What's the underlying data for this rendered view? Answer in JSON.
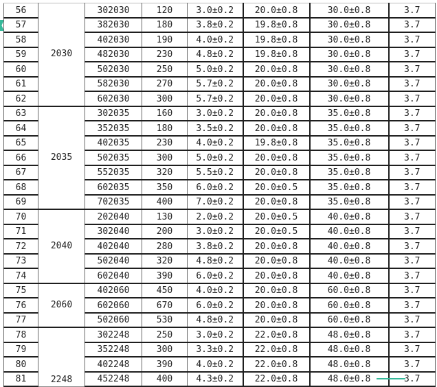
{
  "accent_color": "#36b99a",
  "groups": [
    {
      "label": "2030",
      "rows": [
        {
          "no": "56",
          "model": "302030",
          "capacity": "120",
          "thickness": "3.0±0.2",
          "width": "20.0±0.8",
          "length": "30.0±0.8",
          "voltage": "3.7"
        },
        {
          "no": "57",
          "model": "382030",
          "capacity": "180",
          "thickness": "3.8±0.2",
          "width": "19.8±0.8",
          "length": "30.0±0.8",
          "voltage": "3.7"
        },
        {
          "no": "58",
          "model": "402030",
          "capacity": "190",
          "thickness": "4.0±0.2",
          "width": "19.8±0.8",
          "length": "30.0±0.8",
          "voltage": "3.7"
        },
        {
          "no": "59",
          "model": "482030",
          "capacity": "230",
          "thickness": "4.8±0.2",
          "width": "19.8±0.8",
          "length": "30.0±0.8",
          "voltage": "3.7"
        },
        {
          "no": "60",
          "model": "502030",
          "capacity": "250",
          "thickness": "5.0±0.2",
          "width": "20.0±0.8",
          "length": "30.0±0.8",
          "voltage": "3.7"
        },
        {
          "no": "61",
          "model": "582030",
          "capacity": "270",
          "thickness": "5.7±0.2",
          "width": "20.0±0.8",
          "length": "30.0±0.8",
          "voltage": "3.7"
        },
        {
          "no": "62",
          "model": "602030",
          "capacity": "300",
          "thickness": "5.7±0.2",
          "width": "20.0±0.8",
          "length": "30.0±0.8",
          "voltage": "3.7"
        }
      ]
    },
    {
      "label": "2035",
      "rows": [
        {
          "no": "63",
          "model": "302035",
          "capacity": "160",
          "thickness": "3.0±0.2",
          "width": "20.0±0.8",
          "length": "35.0±0.8",
          "voltage": "3.7"
        },
        {
          "no": "64",
          "model": "352035",
          "capacity": "180",
          "thickness": "3.5±0.2",
          "width": "20.0±0.8",
          "length": "35.0±0.8",
          "voltage": "3.7"
        },
        {
          "no": "65",
          "model": "402035",
          "capacity": "230",
          "thickness": "4.0±0.2",
          "width": "19.8±0.8",
          "length": "35.0±0.8",
          "voltage": "3.7"
        },
        {
          "no": "66",
          "model": "502035",
          "capacity": "300",
          "thickness": "5.0±0.2",
          "width": "20.0±0.8",
          "length": "35.0±0.8",
          "voltage": "3.7"
        },
        {
          "no": "67",
          "model": "552035",
          "capacity": "320",
          "thickness": "5.5±0.2",
          "width": "20.0±0.8",
          "length": "35.0±0.8",
          "voltage": "3.7"
        },
        {
          "no": "68",
          "model": "602035",
          "capacity": "350",
          "thickness": "6.0±0.2",
          "width": "20.0±0.5",
          "length": "35.0±0.8",
          "voltage": "3.7"
        },
        {
          "no": "69",
          "model": "702035",
          "capacity": "400",
          "thickness": "7.0±0.2",
          "width": "20.0±0.8",
          "length": "35.0±0.8",
          "voltage": "3.7"
        }
      ]
    },
    {
      "label": "2040",
      "rows": [
        {
          "no": "70",
          "model": "202040",
          "capacity": "130",
          "thickness": "2.0±0.2",
          "width": "20.0±0.5",
          "length": "40.0±0.8",
          "voltage": "3.7"
        },
        {
          "no": "71",
          "model": "302040",
          "capacity": "200",
          "thickness": "3.0±0.2",
          "width": "20.0±0.5",
          "length": "40.0±0.8",
          "voltage": "3.7"
        },
        {
          "no": "72",
          "model": "402040",
          "capacity": "280",
          "thickness": "3.8±0.2",
          "width": "20.0±0.8",
          "length": "40.0±0.8",
          "voltage": "3.7"
        },
        {
          "no": "73",
          "model": "502040",
          "capacity": "320",
          "thickness": "4.8±0.2",
          "width": "20.0±0.8",
          "length": "40.0±0.8",
          "voltage": "3.7"
        },
        {
          "no": "74",
          "model": "602040",
          "capacity": "390",
          "thickness": "6.0±0.2",
          "width": "20.0±0.8",
          "length": "40.0±0.8",
          "voltage": "3.7"
        }
      ]
    },
    {
      "label": "2060",
      "rows": [
        {
          "no": "75",
          "model": "402060",
          "capacity": "450",
          "thickness": "4.0±0.2",
          "width": "20.0±0.8",
          "length": "60.0±0.8",
          "voltage": "3.7"
        },
        {
          "no": "76",
          "model": "602060",
          "capacity": "670",
          "thickness": "6.0±0.2",
          "width": "20.0±0.8",
          "length": "60.0±0.8",
          "voltage": "3.7"
        },
        {
          "no": "77",
          "model": "502060",
          "capacity": "530",
          "thickness": "4.8±0.2",
          "width": "20.0±0.8",
          "length": "60.0±0.8",
          "voltage": "3.7"
        }
      ]
    },
    {
      "label": "2248",
      "rows": [
        {
          "no": "78",
          "model": "302248",
          "capacity": "250",
          "thickness": "3.0±0.2",
          "width": "22.0±0.8",
          "length": "48.0±0.8",
          "voltage": "3.7"
        },
        {
          "no": "79",
          "model": "352248",
          "capacity": "300",
          "thickness": "3.3±0.2",
          "width": "22.0±0.8",
          "length": "48.0±0.8",
          "voltage": "3.7"
        },
        {
          "no": "80",
          "model": "402248",
          "capacity": "390",
          "thickness": "4.0±0.2",
          "width": "22.0±0.8",
          "length": "48.0±0.8",
          "voltage": "3.7"
        },
        {
          "no": "81",
          "model": "452248",
          "capacity": "400",
          "thickness": "4.3±0.2",
          "width": "22.0±0.8",
          "length": "48.0±0.8",
          "voltage": "3.7"
        }
      ]
    }
  ]
}
